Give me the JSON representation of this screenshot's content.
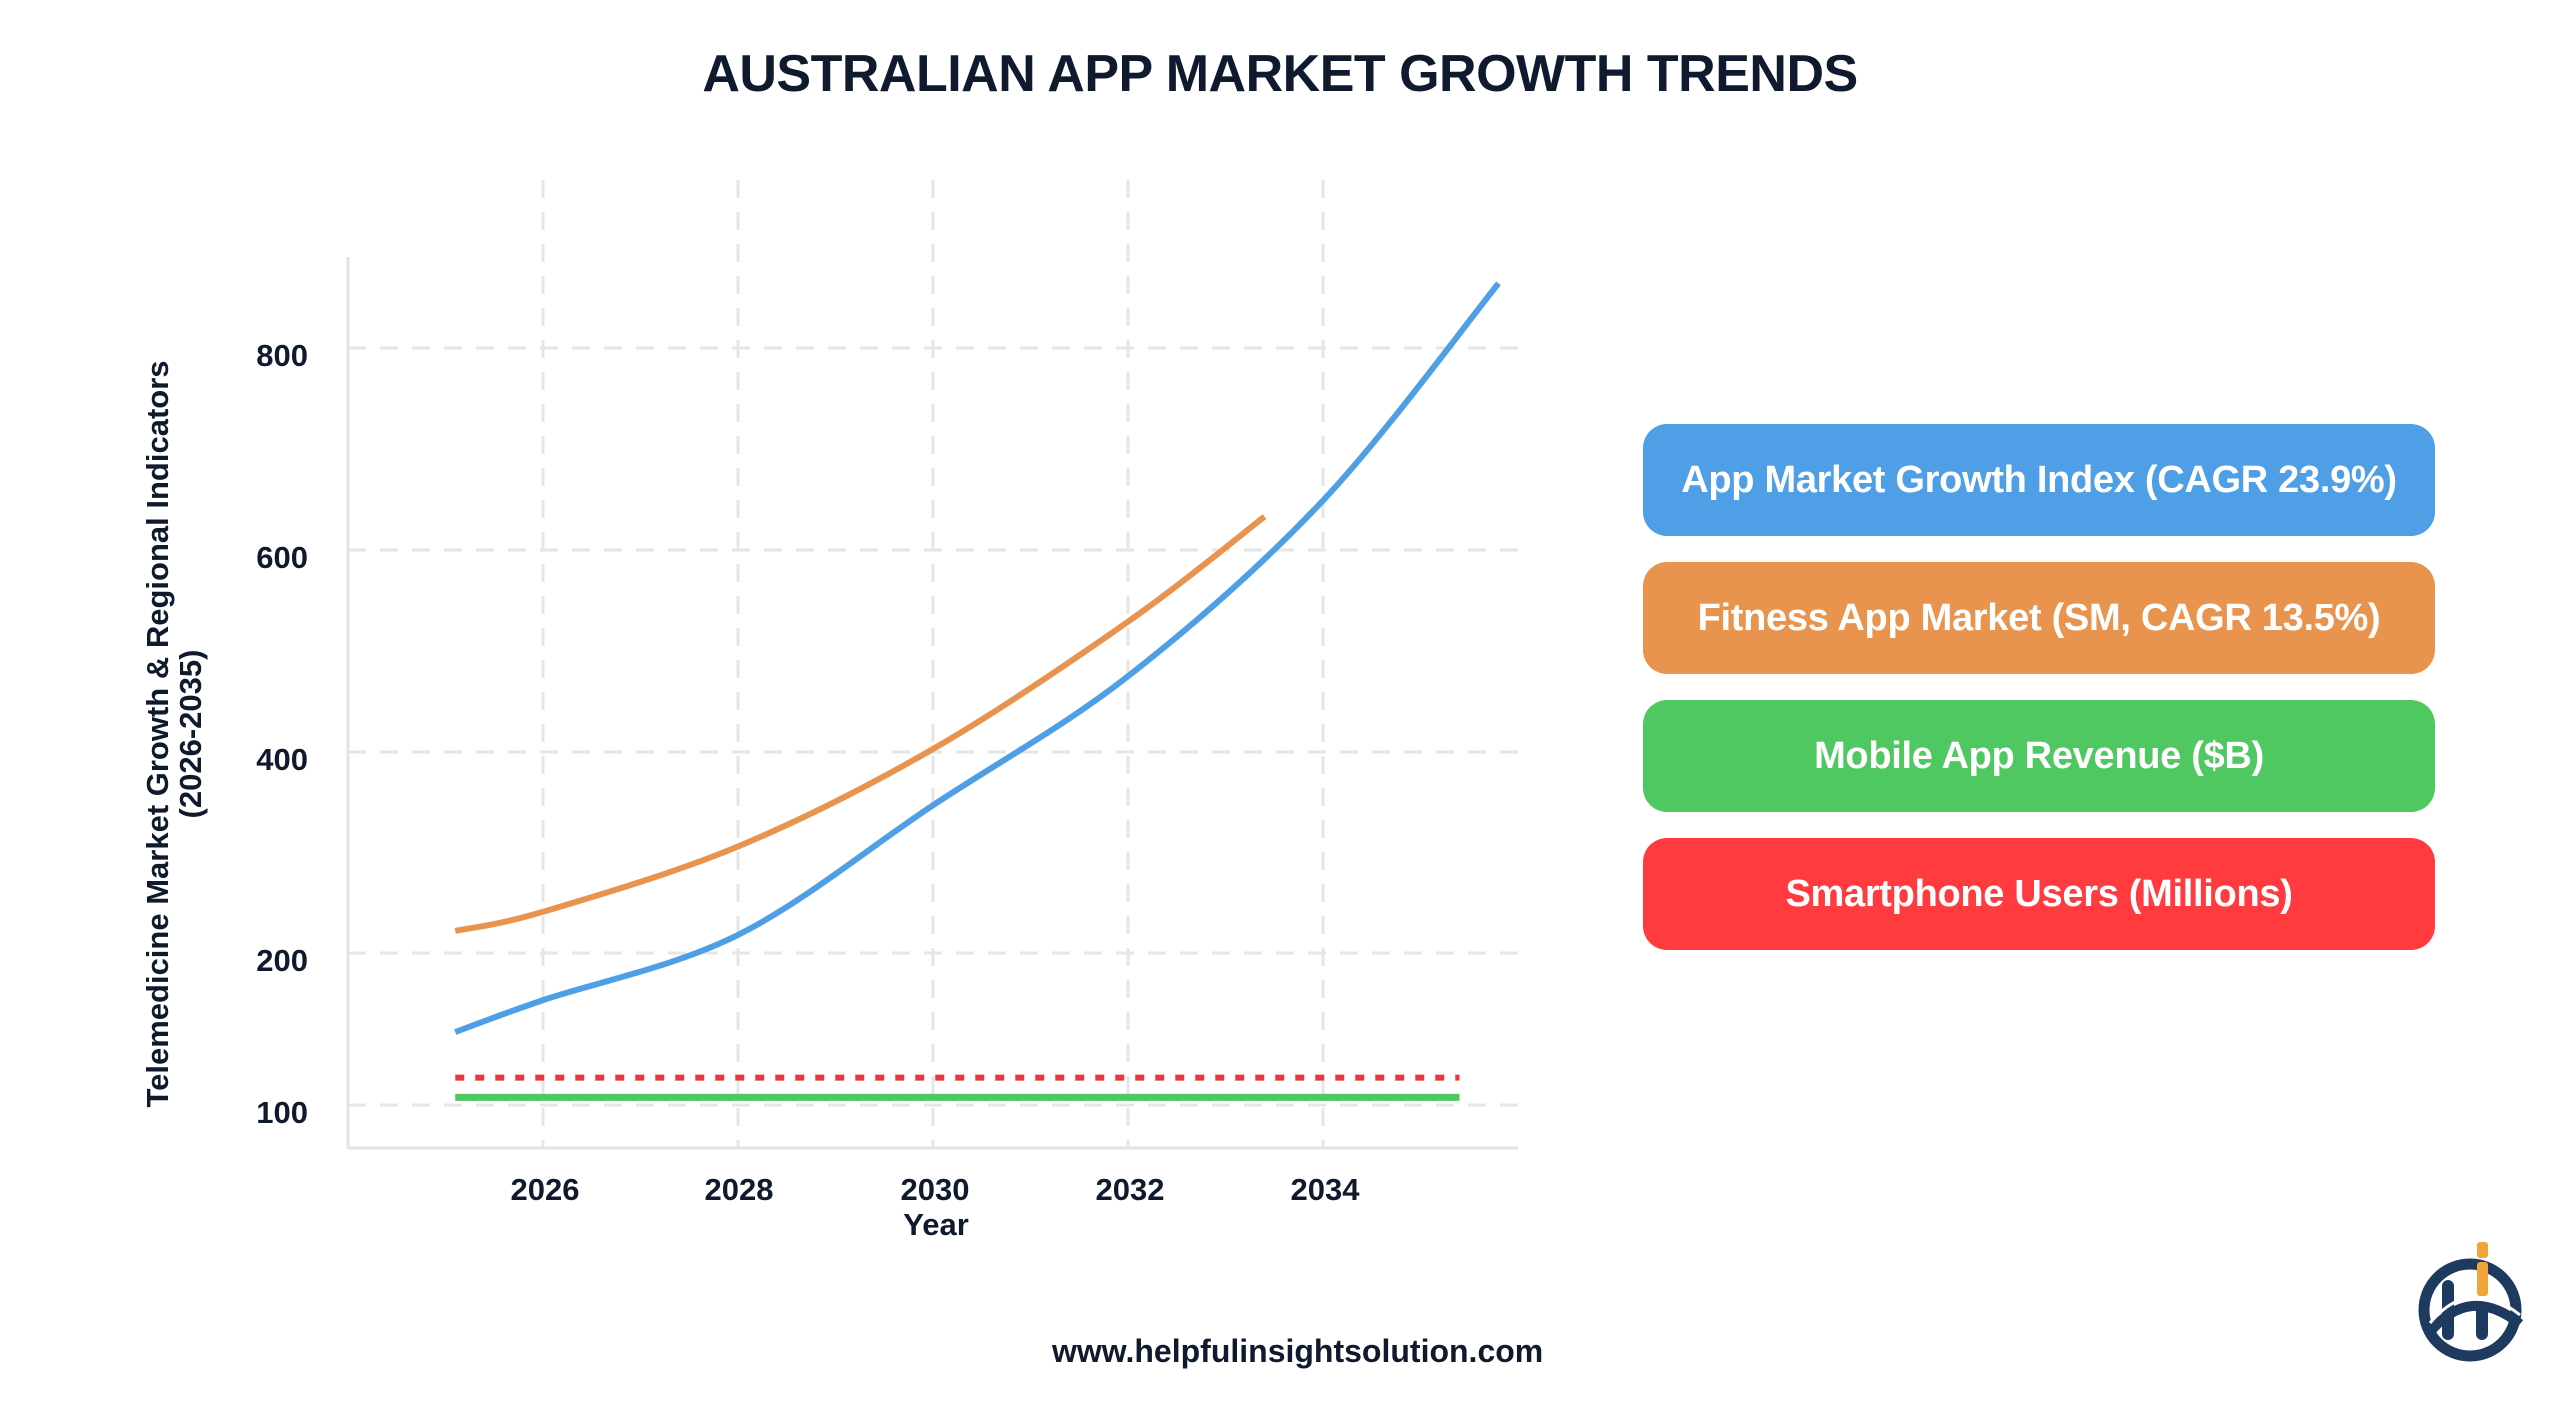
{
  "title": "AUSTRALIAN APP MARKET GROWTH TRENDS",
  "footer": {
    "url": "www.helpfulinsightsolution.com"
  },
  "legend": {
    "items": [
      {
        "label": "App Market Growth Index (CAGR 23.9%)",
        "color": "#4f9fe6"
      },
      {
        "label": "Fitness App Market (SM, CAGR 13.5%)",
        "color": "#e8944f"
      },
      {
        "label": "Mobile App Revenue ($B)",
        "color": "#4fc862"
      },
      {
        "label": "Smartphone Users (Millions)",
        "color": "#ff3b3f"
      }
    ]
  },
  "axes": {
    "ylabel_line1": "Telemedicine Market Growth & Regional Indicators",
    "ylabel_line2": "(2026-2035)",
    "xlabel": "Year",
    "yticks": [
      "800",
      "600",
      "400",
      "200",
      "100"
    ],
    "xticks": [
      "2026",
      "2028",
      "2030",
      "2032",
      "2034"
    ]
  },
  "chart_data": {
    "type": "line",
    "title": "AUSTRALIAN APP MARKET GROWTH TRENDS",
    "xlabel": "Year",
    "ylabel": "Telemedicine Market Growth & Regional Indicators (2026-2035)",
    "x_ticks": [
      2026,
      2028,
      2030,
      2032,
      2034
    ],
    "y_ticks": [
      100,
      200,
      400,
      600,
      800
    ],
    "y_scale_note": "non-linear: 100-200 band stretched relative to 200-800",
    "grid": true,
    "legend_position": "right",
    "series": [
      {
        "name": "App Market Growth Index (CAGR 23.9%)",
        "color": "#4f9fe6",
        "style": "solid",
        "x": [
          2025.1,
          2026,
          2028,
          2030,
          2032,
          2034,
          2035.8
        ],
        "values": [
          148,
          169,
          218,
          347,
          475,
          649,
          864
        ]
      },
      {
        "name": "Fitness App Market (SM, CAGR 13.5%)",
        "color": "#e8944f",
        "style": "solid",
        "x": [
          2025.1,
          2026,
          2028,
          2030,
          2032,
          2033.4
        ],
        "values": [
          222,
          241,
          306,
          403,
          529,
          633
        ]
      },
      {
        "name": "Mobile App Revenue ($B)",
        "color": "#4fc862",
        "style": "solid",
        "x": [
          2025.1,
          2035.4
        ],
        "values": [
          105,
          105
        ]
      },
      {
        "name": "Smartphone Users (Millions)",
        "color": "#e8383d",
        "style": "dotted",
        "x": [
          2025.1,
          2035.4
        ],
        "values": [
          118,
          118
        ]
      }
    ]
  }
}
